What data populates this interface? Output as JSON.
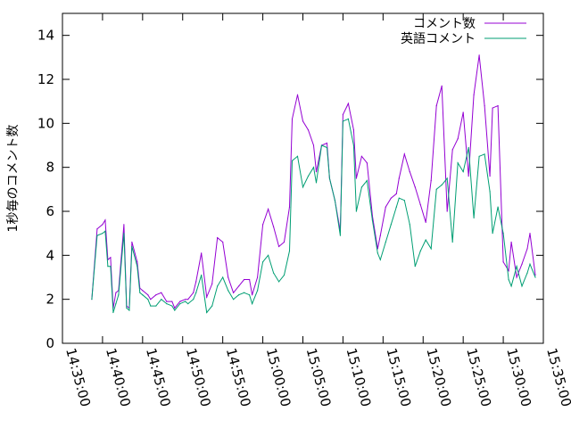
{
  "chart_data": {
    "type": "line",
    "xlabel": "",
    "ylabel": "1秒毎のコメント数",
    "xlim": [
      "14:35:00",
      "15:35:00"
    ],
    "ylim": [
      0,
      15
    ],
    "x_ticks": [
      "14:35:00",
      "14:40:00",
      "14:45:00",
      "14:50:00",
      "14:55:00",
      "15:00:00",
      "15:05:00",
      "15:10:00",
      "15:15:00",
      "15:20:00",
      "15:25:00",
      "15:30:00",
      "15:35:00"
    ],
    "y_ticks": [
      0,
      2,
      4,
      6,
      8,
      10,
      12,
      14
    ],
    "grid": false,
    "legend_position": "top-right",
    "x": [
      "14:38:40",
      "14:39:20",
      "14:40:00",
      "14:40:20",
      "14:40:40",
      "14:41:00",
      "14:41:20",
      "14:41:40",
      "14:42:00",
      "14:42:40",
      "14:43:00",
      "14:43:20",
      "14:43:40",
      "14:44:20",
      "14:44:40",
      "14:45:00",
      "14:45:40",
      "14:46:00",
      "14:46:40",
      "14:47:20",
      "14:48:00",
      "14:48:40",
      "14:49:00",
      "14:49:40",
      "14:50:20",
      "14:50:40",
      "14:51:20",
      "14:51:40",
      "14:52:20",
      "14:53:00",
      "14:53:40",
      "14:54:20",
      "14:55:00",
      "14:55:40",
      "14:56:20",
      "14:57:00",
      "14:57:40",
      "14:58:20",
      "14:58:40",
      "14:59:20",
      "15:00:00",
      "15:00:40",
      "15:01:20",
      "15:02:00",
      "15:02:40",
      "15:03:20",
      "15:03:40",
      "15:04:20",
      "15:05:00",
      "15:05:40",
      "15:06:20",
      "15:06:40",
      "15:07:20",
      "15:08:00",
      "15:08:20",
      "15:09:00",
      "15:09:40",
      "15:10:00",
      "15:10:40",
      "15:11:20",
      "15:11:40",
      "15:12:20",
      "15:13:00",
      "15:13:40",
      "15:14:20",
      "15:14:40",
      "15:15:20",
      "15:16:00",
      "15:16:40",
      "15:17:00",
      "15:17:40",
      "15:18:20",
      "15:19:00",
      "15:19:40",
      "15:20:20",
      "15:21:00",
      "15:21:40",
      "15:22:20",
      "15:23:00",
      "15:23:40",
      "15:24:20",
      "15:25:00",
      "15:25:40",
      "15:26:20",
      "15:27:00",
      "15:27:40",
      "15:28:20",
      "15:28:40",
      "15:29:20",
      "15:30:00",
      "15:30:40",
      "15:31:00",
      "15:31:40",
      "15:32:20",
      "15:33:00",
      "15:33:20",
      "15:34:00"
    ],
    "series": [
      {
        "name": "コメント数",
        "color": "#9400d3",
        "values": [
          2.0,
          5.2,
          5.4,
          5.6,
          3.8,
          3.9,
          1.6,
          2.3,
          2.4,
          5.4,
          1.7,
          1.6,
          4.6,
          3.7,
          2.5,
          2.4,
          2.2,
          2.0,
          2.2,
          2.3,
          1.9,
          1.9,
          1.6,
          1.9,
          2.0,
          2.0,
          2.3,
          2.8,
          4.1,
          2.1,
          2.7,
          4.8,
          4.6,
          3.0,
          2.3,
          2.6,
          2.9,
          2.9,
          2.2,
          3.0,
          5.4,
          6.1,
          5.3,
          4.4,
          4.6,
          6.2,
          10.2,
          11.3,
          10.1,
          9.7,
          9.0,
          7.8,
          9.0,
          9.1,
          7.5,
          6.5,
          5.1,
          10.4,
          10.9,
          9.7,
          7.5,
          8.5,
          8.2,
          5.8,
          4.3,
          4.9,
          6.2,
          6.6,
          6.8,
          7.5,
          8.6,
          7.8,
          7.1,
          6.3,
          5.5,
          7.4,
          10.8,
          11.7,
          6.0,
          8.8,
          9.3,
          10.5,
          7.6,
          11.3,
          13.1,
          10.8,
          7.6,
          10.7,
          10.8,
          3.7,
          3.3,
          4.6,
          3.0,
          3.6,
          4.3,
          5.0,
          3.1
        ]
      },
      {
        "name": "英語コメント",
        "color": "#009e73",
        "values": [
          2.0,
          4.9,
          5.0,
          5.1,
          3.5,
          3.5,
          1.4,
          1.8,
          2.2,
          5.0,
          1.6,
          1.5,
          4.4,
          3.5,
          2.3,
          2.2,
          2.0,
          1.7,
          1.7,
          2.0,
          1.8,
          1.7,
          1.5,
          1.8,
          1.9,
          1.8,
          2.0,
          2.3,
          3.1,
          1.4,
          1.7,
          2.6,
          3.0,
          2.4,
          2.0,
          2.2,
          2.3,
          2.2,
          1.8,
          2.4,
          3.7,
          4.0,
          3.2,
          2.8,
          3.1,
          4.2,
          8.3,
          8.5,
          7.1,
          7.6,
          8.0,
          7.3,
          9.0,
          8.9,
          7.5,
          6.5,
          4.9,
          10.1,
          10.2,
          9.0,
          6.0,
          7.1,
          7.4,
          5.6,
          4.1,
          3.8,
          4.6,
          5.4,
          6.2,
          6.6,
          6.5,
          5.4,
          3.5,
          4.2,
          4.7,
          4.3,
          7.0,
          7.2,
          7.5,
          4.6,
          8.2,
          7.8,
          8.9,
          5.7,
          8.5,
          8.6,
          6.9,
          5.0,
          6.2,
          5.0,
          2.9,
          2.6,
          3.5,
          2.6,
          3.2,
          3.6,
          3.0
        ]
      }
    ]
  }
}
